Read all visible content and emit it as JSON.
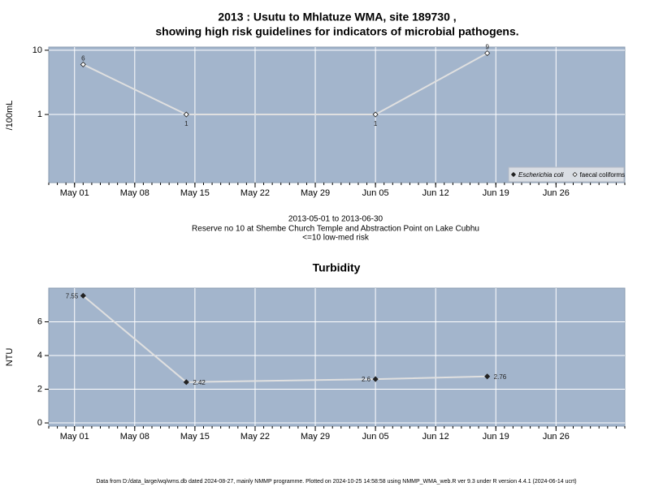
{
  "chart_data": [
    {
      "type": "line",
      "title": [
        "2013 : Usutu to Mhlatuze WMA, site 189730 ,",
        "showing high risk guidelines for indicators of microbial pathogens."
      ],
      "subtitle": [
        "2013-05-01 to 2013-06-30",
        "Reserve no 10 at Shembe Church Temple and Abstraction Point on Lake Cubhu",
        "<=10 low-med risk"
      ],
      "y_label": "/100mL",
      "x": [
        "2013-05-02",
        "2013-05-14",
        "2013-06-05",
        "2013-06-18"
      ],
      "series": [
        {
          "name": "Escherichia coli",
          "color": "#222222",
          "marker": "filled",
          "values": [
            null,
            null,
            null,
            null
          ]
        },
        {
          "name": "faecal coliforms",
          "color": "#222222",
          "marker": "open",
          "values": [
            6,
            1,
            1,
            9
          ]
        }
      ],
      "xlim": [
        "2013-04-28",
        "2013-07-04"
      ],
      "xticks": [
        {
          "value": "2013-05-01",
          "label": "May 01"
        },
        {
          "value": "2013-05-08",
          "label": "May 08"
        },
        {
          "value": "2013-05-15",
          "label": "May 15"
        },
        {
          "value": "2013-05-22",
          "label": "May 22"
        },
        {
          "value": "2013-05-29",
          "label": "May 29"
        },
        {
          "value": "2013-06-05",
          "label": "Jun 05"
        },
        {
          "value": "2013-06-12",
          "label": "Jun 12"
        },
        {
          "value": "2013-06-19",
          "label": "Jun 19"
        },
        {
          "value": "2013-06-26",
          "label": "Jun 26"
        }
      ],
      "ylim": [
        0.087,
        11.2
      ],
      "yticks": [
        1,
        10
      ],
      "log_y": true,
      "grid": true,
      "legend": "bottom-right"
    },
    {
      "type": "line",
      "title": "Turbidity",
      "y_label": "NTU",
      "x": [
        "2013-05-02",
        "2013-05-14",
        "2013-06-05",
        "2013-06-18"
      ],
      "series": [
        {
          "name": "Turbidity",
          "color": "#222222",
          "marker": "filled",
          "values": [
            7.55,
            2.42,
            2.6,
            2.76
          ]
        }
      ],
      "xlim": [
        "2013-04-28",
        "2013-07-04"
      ],
      "xticks": [
        {
          "value": "2013-05-01",
          "label": "May 01"
        },
        {
          "value": "2013-05-08",
          "label": "May 08"
        },
        {
          "value": "2013-05-15",
          "label": "May 15"
        },
        {
          "value": "2013-05-22",
          "label": "May 22"
        },
        {
          "value": "2013-05-29",
          "label": "May 29"
        },
        {
          "value": "2013-06-05",
          "label": "Jun 05"
        },
        {
          "value": "2013-06-12",
          "label": "Jun 12"
        },
        {
          "value": "2013-06-19",
          "label": "Jun 19"
        },
        {
          "value": "2013-06-26",
          "label": "Jun 26"
        }
      ],
      "ylim": [
        -0.19,
        8.0
      ],
      "yticks": [
        0,
        2,
        4,
        6
      ],
      "log_y": false,
      "grid": true
    }
  ],
  "footer": "Data from D:/data_large/wq/wms.db dated 2024-08-27, mainly NMMP programme. Plotted on 2024-10-25 14:58:58 using NMMP_WMA_web.R ver 9.3 under R version 4.4.1 (2024-06-14 ucrt)"
}
